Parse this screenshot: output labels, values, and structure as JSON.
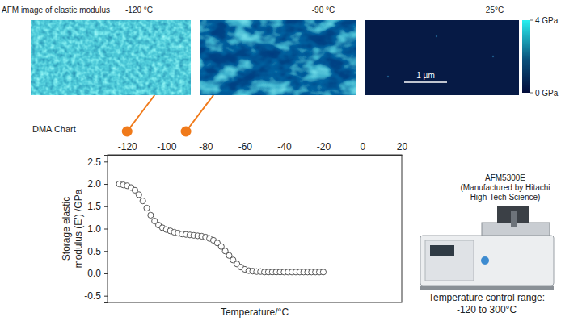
{
  "chart_data": {
    "type": "scatter",
    "title": "DMA Chart",
    "xlabel": "Temperature/°C",
    "ylabel": [
      "Storage elastic",
      "modulus (E') /GPa"
    ],
    "x": [
      -124,
      -122,
      -120,
      -118,
      -116,
      -114,
      -112,
      -110,
      -108,
      -106,
      -104,
      -102,
      -100,
      -98,
      -96,
      -94,
      -92,
      -90,
      -88,
      -86,
      -84,
      -82,
      -80,
      -78,
      -76,
      -74,
      -72,
      -70,
      -68,
      -66,
      -64,
      -62,
      -60,
      -58,
      -56,
      -54,
      -52,
      -50,
      -48,
      -46,
      -44,
      -42,
      -40,
      -38,
      -36,
      -34,
      -32,
      -30,
      -28,
      -26,
      -24,
      -22,
      -20
    ],
    "values": [
      2.0,
      1.98,
      1.96,
      1.92,
      1.86,
      1.76,
      1.62,
      1.46,
      1.3,
      1.17,
      1.08,
      1.02,
      0.98,
      0.95,
      0.92,
      0.9,
      0.88,
      0.87,
      0.86,
      0.85,
      0.84,
      0.83,
      0.81,
      0.78,
      0.74,
      0.68,
      0.6,
      0.5,
      0.4,
      0.3,
      0.21,
      0.14,
      0.09,
      0.06,
      0.05,
      0.04,
      0.04,
      0.03,
      0.03,
      0.03,
      0.03,
      0.03,
      0.03,
      0.03,
      0.03,
      0.03,
      0.03,
      0.03,
      0.03,
      0.03,
      0.03,
      0.03,
      0.03
    ],
    "color": "#555555",
    "marker": "circle",
    "xlim": [
      -130,
      20
    ],
    "xticks": [
      -120,
      -100,
      -80,
      -60,
      -40,
      -20,
      0,
      20
    ],
    "ylim": [
      -0.65,
      2.65
    ],
    "yticks": [
      2.5,
      {
        "value": 2,
        "label": "2.0"
      },
      1.5,
      {
        "value": 1,
        "label": "1.0"
      },
      0.5,
      {
        "value": 0,
        "label": "0.0"
      },
      -0.5
    ],
    "grid": false,
    "highlight_x": [
      -120,
      -90
    ]
  },
  "afm": {
    "title": "AFM image of elastic modulus",
    "images": [
      {
        "label": "-120 °C"
      },
      {
        "label": "-90 °C"
      },
      {
        "label": "25°C"
      }
    ],
    "colorbar": {
      "range": [
        0,
        4
      ],
      "ticks": [
        {
          "value": 4,
          "label": "4 GPa"
        },
        {
          "value": 0,
          "label": "0 GPa"
        }
      ]
    },
    "scale_bar": "1 µm"
  },
  "instrument": {
    "name_lines": [
      "AFM5300E",
      "(Manufactured by Hitachi",
      "High-Tech Science)"
    ],
    "caption_lines": [
      "Temperature control range:",
      "-120 to 300°C"
    ]
  }
}
